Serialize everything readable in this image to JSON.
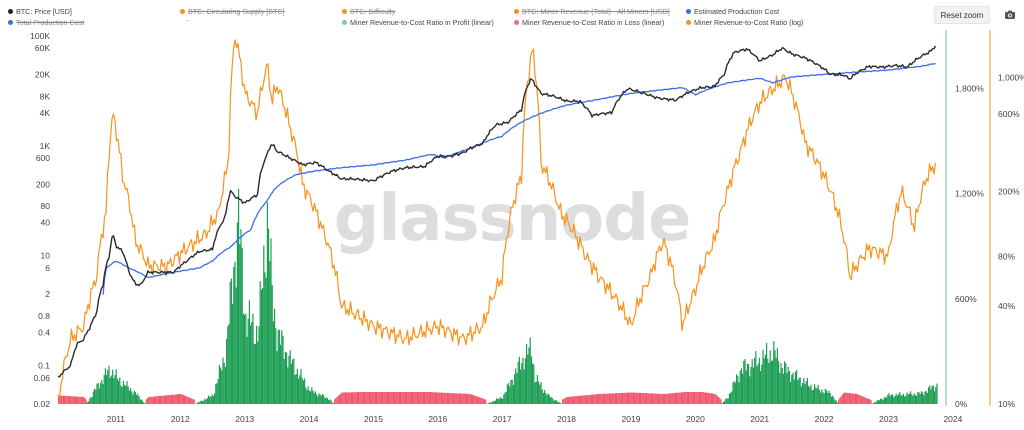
{
  "toolbar": {
    "reset_zoom_label": "Reset zoom",
    "camera_icon": "camera-icon"
  },
  "legend": [
    {
      "label": "BTC: Price [USD]",
      "color": "#222222",
      "active": true
    },
    {
      "label": "BTC: Circulating Supply [BTC]",
      "color": "#f7931a",
      "active": false
    },
    {
      "label": "BTC: Difficulty",
      "color": "#f7931a",
      "active": false
    },
    {
      "label": "BTC: Miner Revenue (Total) - All Miners [USD]",
      "color": "#f7931a",
      "active": false
    },
    {
      "label": "Estimated Production Cost",
      "color": "#3b6ee8",
      "active": true
    },
    {
      "label": "Total Production Cost",
      "color": "#3b6ee8",
      "active": false
    },
    {
      "label": "-",
      "color": "",
      "active": true
    },
    {
      "label": "Miner Revenue-to-Cost Ratio in Profit (linear)",
      "color": "#86c5a4",
      "active": true
    },
    {
      "label": "Miner Revenue-to-Cost Ratio in Loss (linear)",
      "color": "#f06b7d",
      "active": true
    },
    {
      "label": "Miner Revenue-to-Cost Ratio (log)",
      "color": "#f7931a",
      "active": true
    }
  ],
  "watermark": "glassnode",
  "colors": {
    "price": "#2b2b2b",
    "cost": "#3b6ee8",
    "ratio": "#f7931a",
    "profit": "#1e9e55",
    "loss": "#f0566c",
    "axis_green": "#5cc7a0",
    "axis_orange": "#f7931a"
  },
  "chart_data": {
    "type": "line",
    "x_tick_labels": [
      "2011",
      "2012",
      "2013",
      "2014",
      "2015",
      "2016",
      "2017",
      "2018",
      "2019",
      "2020",
      "2021",
      "2022",
      "2023",
      "2024"
    ],
    "y_left": {
      "scale": "log",
      "tick_labels": [
        "100K",
        "60K",
        "20K",
        "8K",
        "4K",
        "1K",
        "600",
        "200",
        "80",
        "40",
        "10",
        "6",
        "2",
        "0.8",
        "0.4",
        "0.1",
        "0.06",
        "0.02"
      ]
    },
    "y_right_linear": {
      "tick_labels": [
        "1,800%",
        "1,200%",
        "600%",
        "0%"
      ],
      "range": [
        0,
        2100
      ]
    },
    "y_right_log": {
      "scale": "log",
      "tick_labels": [
        "1,000%",
        "600%",
        "200%",
        "80%",
        "40%",
        "10%"
      ]
    },
    "series": [
      {
        "name": "BTC: Price [USD]",
        "x": [
          2010.6,
          2010.7,
          2010.8,
          2010.9,
          2011.0,
          2011.1,
          2011.2,
          2011.3,
          2011.4,
          2011.45,
          2011.5,
          2011.6,
          2011.7,
          2011.8,
          2011.9,
          2012.0,
          2012.2,
          2012.4,
          2012.6,
          2012.8,
          2013.0,
          2013.2,
          2013.28,
          2013.35,
          2013.5,
          2013.7,
          2013.85,
          2013.92,
          2014.0,
          2014.2,
          2014.4,
          2014.6,
          2014.8,
          2015.0,
          2015.2,
          2015.5,
          2015.8,
          2016.0,
          2016.3,
          2016.5,
          2016.7,
          2016.9,
          2017.0,
          2017.2,
          2017.4,
          2017.6,
          2017.8,
          2017.95,
          2018.0,
          2018.1,
          2018.3,
          2018.5,
          2018.7,
          2018.9,
          2019.0,
          2019.2,
          2019.45,
          2019.7,
          2019.9,
          2020.0,
          2020.2,
          2020.4,
          2020.6,
          2020.8,
          2020.95,
          2021.1,
          2021.3,
          2021.5,
          2021.7,
          2021.85,
          2022.0,
          2022.2,
          2022.4,
          2022.6,
          2022.8,
          2022.9,
          2023.0,
          2023.2,
          2023.4,
          2023.6,
          2023.8,
          2024.0,
          2024.15,
          2024.25
        ],
        "values": [
          0.06,
          0.08,
          0.1,
          0.25,
          0.3,
          0.5,
          0.9,
          3,
          10,
          25,
          15,
          12,
          5,
          3,
          3,
          5,
          5,
          5,
          8,
          12,
          13,
          50,
          150,
          120,
          90,
          130,
          700,
          1100,
          800,
          600,
          450,
          500,
          350,
          250,
          250,
          230,
          350,
          400,
          420,
          650,
          650,
          750,
          900,
          1100,
          2400,
          2700,
          4500,
          17000,
          13500,
          9000,
          8000,
          6500,
          6500,
          3500,
          3800,
          4000,
          11000,
          9000,
          7500,
          7200,
          6800,
          9500,
          11500,
          12000,
          20000,
          50000,
          58000,
          35000,
          45000,
          60000,
          47000,
          40000,
          30000,
          20000,
          19500,
          16500,
          21000,
          28000,
          27000,
          29000,
          27500,
          42000,
          52000,
          69000
        ]
      },
      {
        "name": "Estimated Production Cost",
        "x": [
          2011.3,
          2011.35,
          2011.5,
          2011.7,
          2012.0,
          2012.4,
          2012.8,
          2013.0,
          2013.3,
          2013.6,
          2013.85,
          2014.0,
          2014.3,
          2014.6,
          2015.0,
          2015.5,
          2016.0,
          2016.4,
          2016.6,
          2017.0,
          2017.5,
          2018.0,
          2018.5,
          2019.0,
          2019.5,
          2020.0,
          2020.3,
          2020.5,
          2021.0,
          2021.5,
          2021.7,
          2022.0,
          2022.5,
          2023.0,
          2023.5,
          2024.0,
          2024.25
        ],
        "values": [
          2,
          6,
          8,
          6,
          4,
          5,
          6,
          8,
          15,
          30,
          100,
          180,
          300,
          350,
          400,
          450,
          550,
          700,
          600,
          900,
          1500,
          3500,
          5500,
          7000,
          9000,
          10500,
          11500,
          8500,
          14000,
          17000,
          14000,
          18000,
          20000,
          22000,
          24000,
          28000,
          32000
        ]
      },
      {
        "name": "Miner Revenue-to-Cost Ratio (log)",
        "x": [
          2010.6,
          2010.8,
          2011.0,
          2011.2,
          2011.35,
          2011.45,
          2011.6,
          2011.8,
          2012.0,
          2012.3,
          2012.6,
          2012.9,
          2013.1,
          2013.25,
          2013.35,
          2013.5,
          2013.7,
          2013.85,
          2013.92,
          2014.0,
          2014.2,
          2014.4,
          2014.7,
          2015.0,
          2015.5,
          2016.0,
          2016.5,
          2016.9,
          2017.2,
          2017.5,
          2017.8,
          2017.97,
          2018.1,
          2018.4,
          2018.8,
          2019.0,
          2019.5,
          2019.8,
          2020.0,
          2020.3,
          2020.5,
          2020.8,
          2021.0,
          2021.2,
          2021.5,
          2021.9,
          2022.2,
          2022.5,
          2022.9,
          2023.2,
          2023.5,
          2023.7,
          2023.9,
          2024.1,
          2024.25
        ],
        "values": [
          10,
          25,
          30,
          60,
          150,
          600,
          250,
          100,
          70,
          70,
          90,
          110,
          150,
          300,
          1800,
          800,
          600,
          1200,
          700,
          900,
          500,
          220,
          120,
          40,
          30,
          25,
          30,
          25,
          30,
          60,
          250,
          1500,
          300,
          150,
          80,
          60,
          30,
          60,
          100,
          30,
          50,
          100,
          200,
          350,
          700,
          1000,
          400,
          250,
          60,
          90,
          80,
          200,
          120,
          250,
          300
        ]
      },
      {
        "name": "Miner Revenue-to-Cost Ratio (linear)",
        "x": [
          2010.6,
          2011.0,
          2011.2,
          2011.4,
          2011.5,
          2011.8,
          2012.0,
          2012.5,
          2013.0,
          2013.2,
          2013.3,
          2013.4,
          2013.5,
          2013.7,
          2013.85,
          2013.92,
          2014.0,
          2014.2,
          2014.5,
          2014.8,
          2015.0,
          2016.0,
          2017.0,
          2017.5,
          2017.8,
          2017.95,
          2018.0,
          2018.2,
          2018.5,
          2019.0,
          2019.5,
          2020.0,
          2020.5,
          2020.8,
          2021.0,
          2021.2,
          2021.5,
          2021.7,
          2021.85,
          2022.0,
          2022.3,
          2022.6,
          2022.8,
          2023.0,
          2023.5,
          2024.0,
          2024.25
        ],
        "values": [
          -30,
          -20,
          100,
          200,
          150,
          60,
          -20,
          -40,
          50,
          300,
          700,
          1050,
          500,
          400,
          1080,
          600,
          400,
          250,
          80,
          30,
          -50,
          -60,
          -40,
          40,
          250,
          320,
          150,
          50,
          -20,
          -40,
          -50,
          -40,
          -60,
          -40,
          40,
          200,
          250,
          300,
          210,
          170,
          100,
          60,
          -50,
          -40,
          50,
          60,
          110
        ]
      }
    ]
  }
}
